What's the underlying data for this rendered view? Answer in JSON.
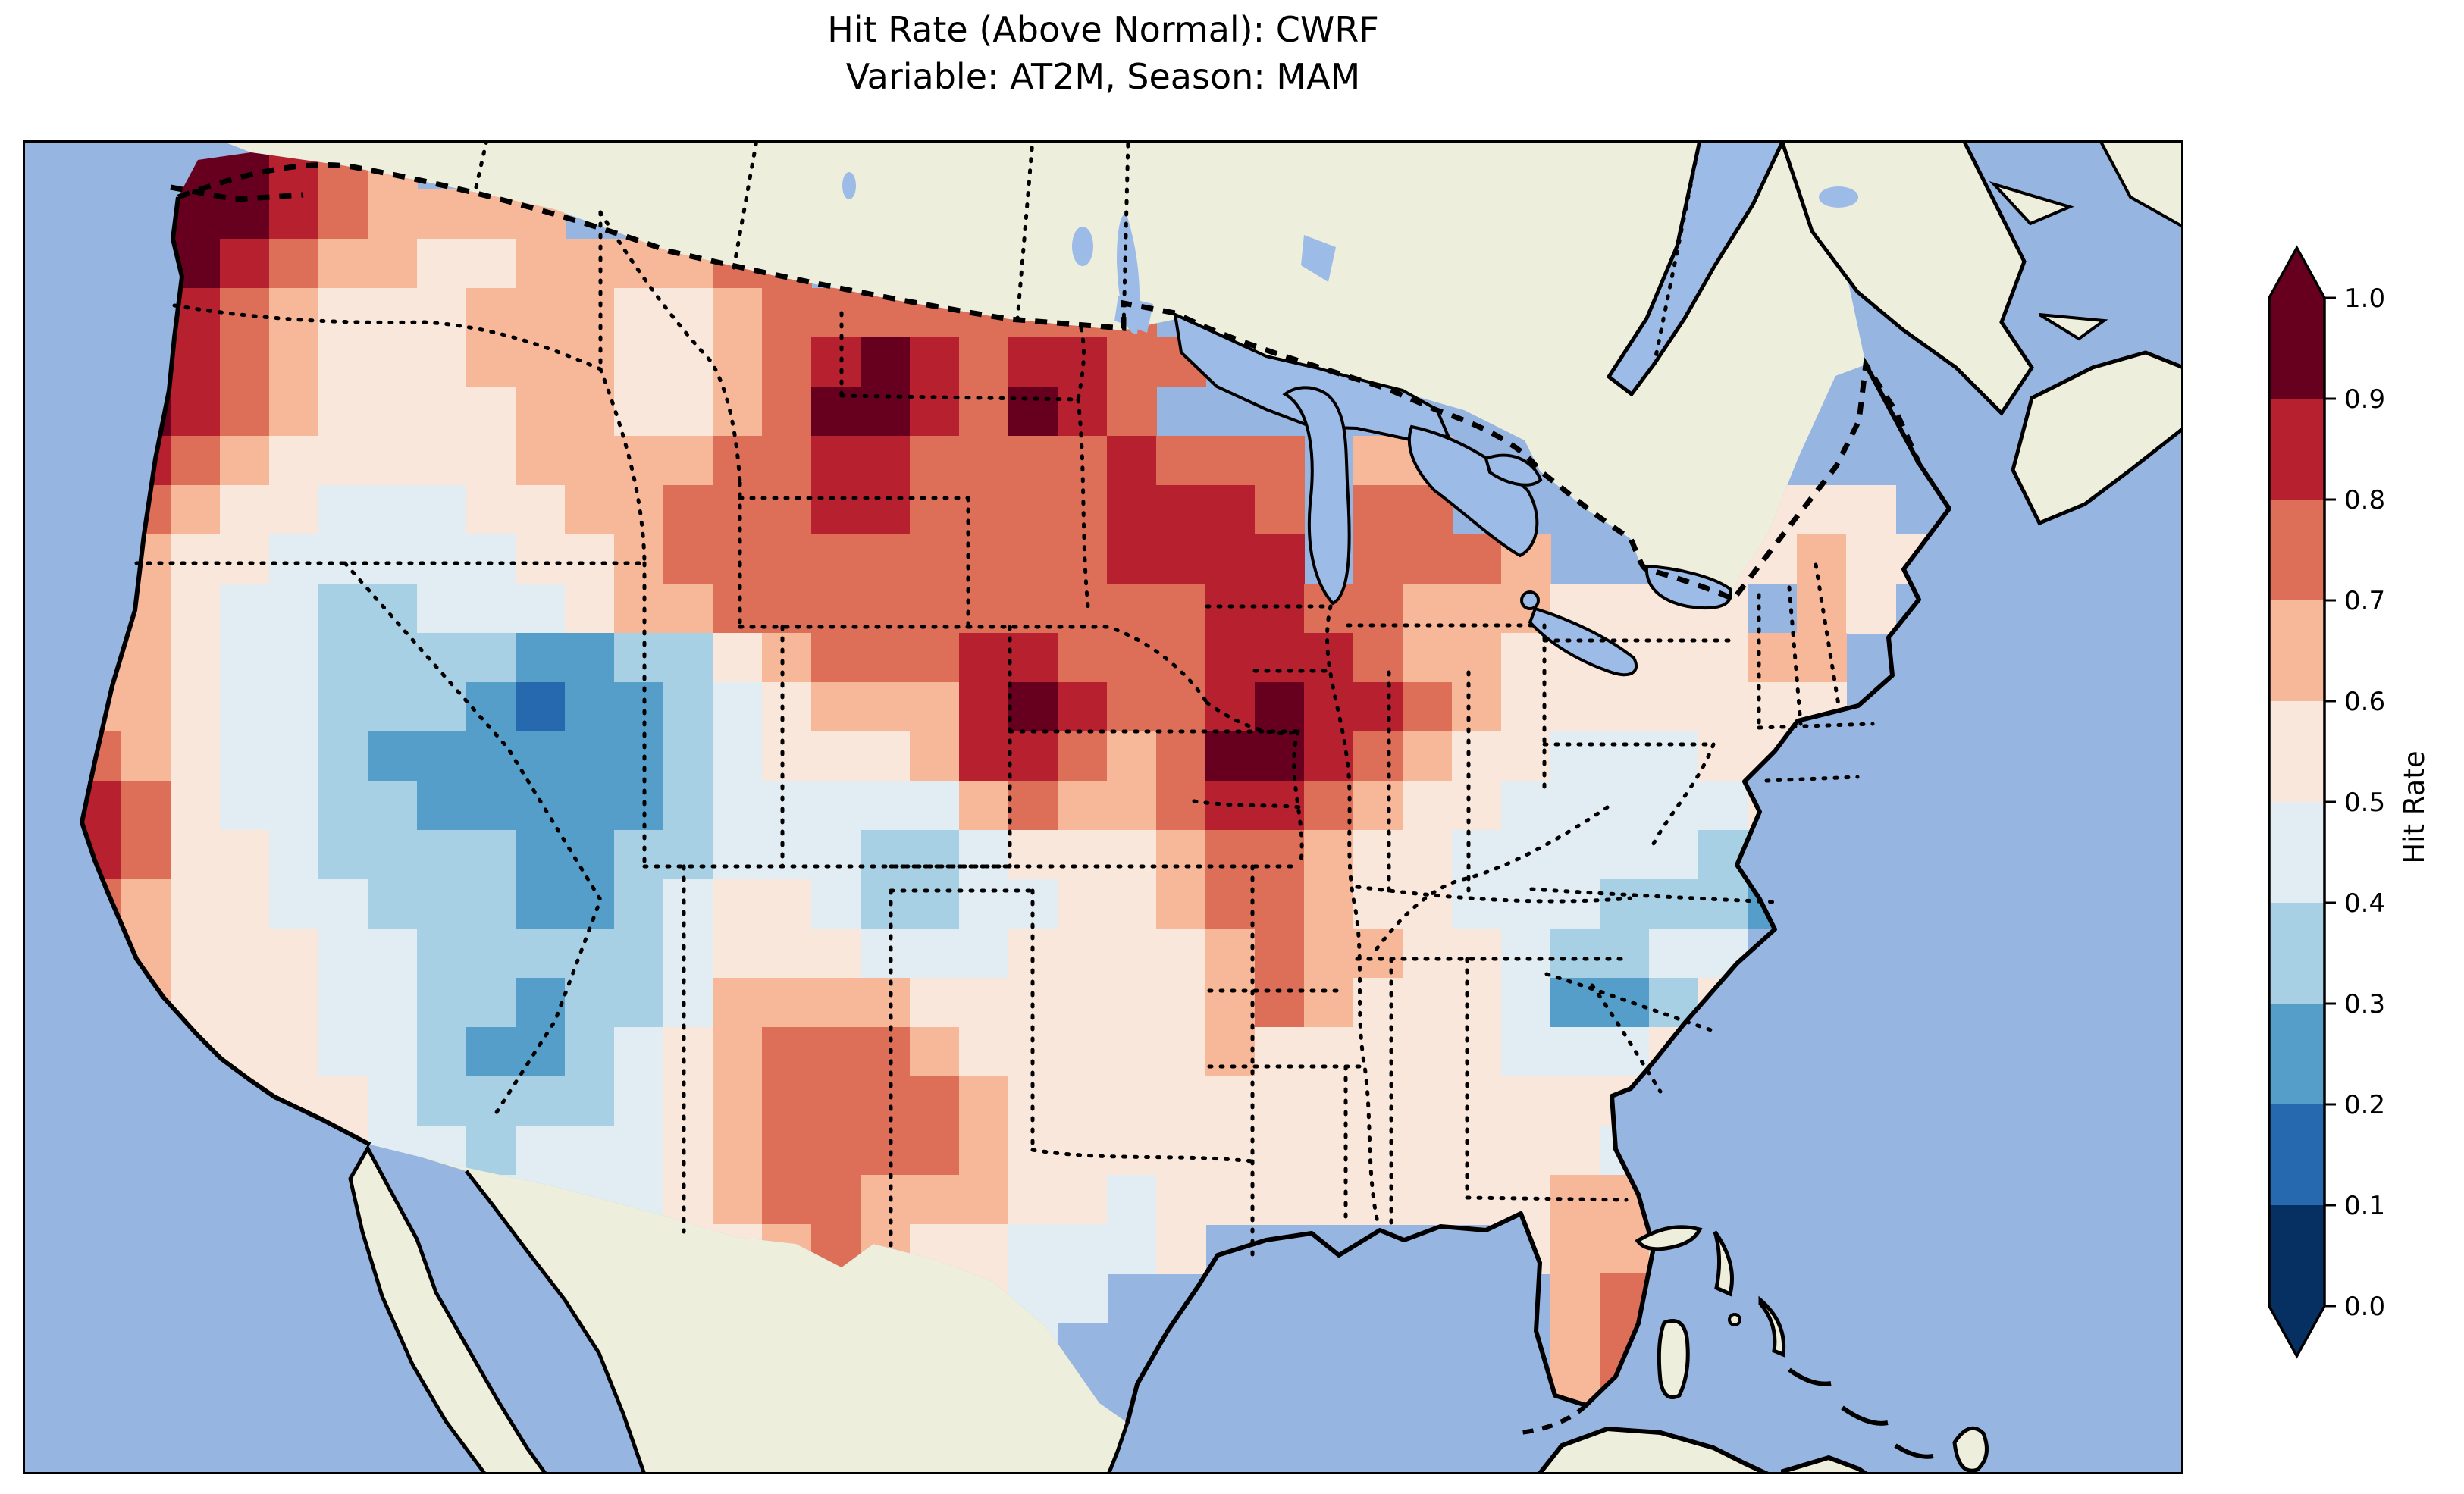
{
  "title": {
    "line1": "Hit Rate (Above Normal): CWRF",
    "line2": "Variable: AT2M, Season: MAM"
  },
  "colorbar": {
    "label": "Hit Rate",
    "tick_labels": [
      "0.0",
      "0.1",
      "0.2",
      "0.3",
      "0.4",
      "0.5",
      "0.6",
      "0.7",
      "0.8",
      "0.9",
      "1.0"
    ],
    "bin_edges": [
      0.0,
      0.1,
      0.2,
      0.3,
      0.4,
      0.5,
      0.6,
      0.7,
      0.8,
      0.9,
      1.0
    ],
    "colors": [
      "#053061",
      "#2769ae",
      "#549ec9",
      "#a7d0e4",
      "#e2edf3",
      "#fae7dc",
      "#f7b799",
      "#dd6f59",
      "#b6202f",
      "#67001f"
    ],
    "under_color": "#053061",
    "over_color": "#67001f",
    "extend": "both"
  },
  "map_style": {
    "ocean_color": "#97b5e1",
    "lake_color": "#9dbbe7",
    "land_color": "#edeedb",
    "coast_color": "#000000",
    "state_border_style": "dotted"
  },
  "chart_data": {
    "type": "heatmap",
    "title": "Hit Rate (Above Normal): CWRF",
    "subtitle": "Variable: AT2M, Season: MAM",
    "metric": "Hit Rate (Above Normal)",
    "model": "CWRF",
    "variable": "AT2M",
    "season": "MAM",
    "region": "Contiguous United States (map projection over North America)",
    "value_range": [
      0.0,
      1.0
    ],
    "bin_size": 0.1,
    "legend_label": "Hit Rate",
    "palette": [
      "#053061",
      "#2769ae",
      "#549ec9",
      "#a7d0e4",
      "#e2edf3",
      "#fae7dc",
      "#f7b799",
      "#dd6f59",
      "#b6202f",
      "#67001f"
    ],
    "grid": {
      "ncols": 44,
      "nrows": 27,
      "cell_encoding": "each digit = hit-rate bin index (0 -> 0.0-0.1, 5 -> 0.5-0.6, 9 -> 0.9-1.0); '.' = outside CONUS mask",
      "rows": [
        "..899876....................................",
        "..999876666.................................",
        "..99876655666677............................",
        ".8887655566655677777777.....................",
        ".89876555666556789878877....................",
        ".9987655556655679987987.....................",
        ".8876555556666778877778777.66...............",
        ".7765544455667778877778887.77....55555......",
        "67655444445567777777778888.7776..555655.....",
        "67654433444566777777777788776665555 65......",
        "5665443333223356777887778887665555566.......",
        "5665443332122345666898778988765555555.......",
        "576544322222234555688767998765544455........",
        "587544332222234444467667887655444445........",
        "587554333322334443345556776554444433........",
        "576554433322345543344556776554443332........",
        ".6655544333334555444555567665543344.........",
        "..655544332334666655555567655542235.........",
        "...55544322345677765555565555544456.........",
        "....555433334567777655555555555555..........",
        ".....55443444567777655555555555544..........",
        "........44444567766655455555555664..........",
        ".............55676554445......5665..........",
        "..............56665544.........676..........",
        "................55544..........676..........",
        "..................444..........67...........",
        "...................44..........56..........."
      ]
    },
    "regional_summary": [
      {
        "region": "Pacific Northwest coast (WA/OR)",
        "hit_rate": "0.8-1.0 (darkest maximum over Puget Sound / Olympic Peninsula)"
      },
      {
        "region": "Northern Plains and Upper Midwest (MT/ND/SD/MN/WI/MI)",
        "hit_rate": "0.7-0.9 with >0.9 cores in central ND, NE WY / Black Hills and SE Nebraska"
      },
      {
        "region": "SW Iowa / N Missouri / W Illinois",
        "hit_rate": "0.8-1.0 (largest dark-maroon core)"
      },
      {
        "region": "Great Basin and Four Corners (NV/UT/CO/AZ/NM)",
        "hit_rate": "0.1-0.4 (broad blue minimum, darkest in central Utah and Arizona)"
      },
      {
        "region": "Central Texas",
        "hit_rate": "0.7-0.8 red blob surrounded by 0.5-0.7"
      },
      {
        "region": "Oklahoma",
        "hit_rate": "0.3-0.5 local blue patches"
      },
      {
        "region": "Arkansas / Mississippi / Alabama diagonal",
        "hit_rate": "0.6-0.8 streak"
      },
      {
        "region": "Carolinas and Georgia",
        "hit_rate": "0.2-0.5 blue patches"
      },
      {
        "region": "Northeast / Mid-Atlantic",
        "hit_rate": "0.5-0.7 pale pink"
      },
      {
        "region": "South Florida",
        "hit_rate": "0.6-0.8 salmon"
      }
    ]
  }
}
